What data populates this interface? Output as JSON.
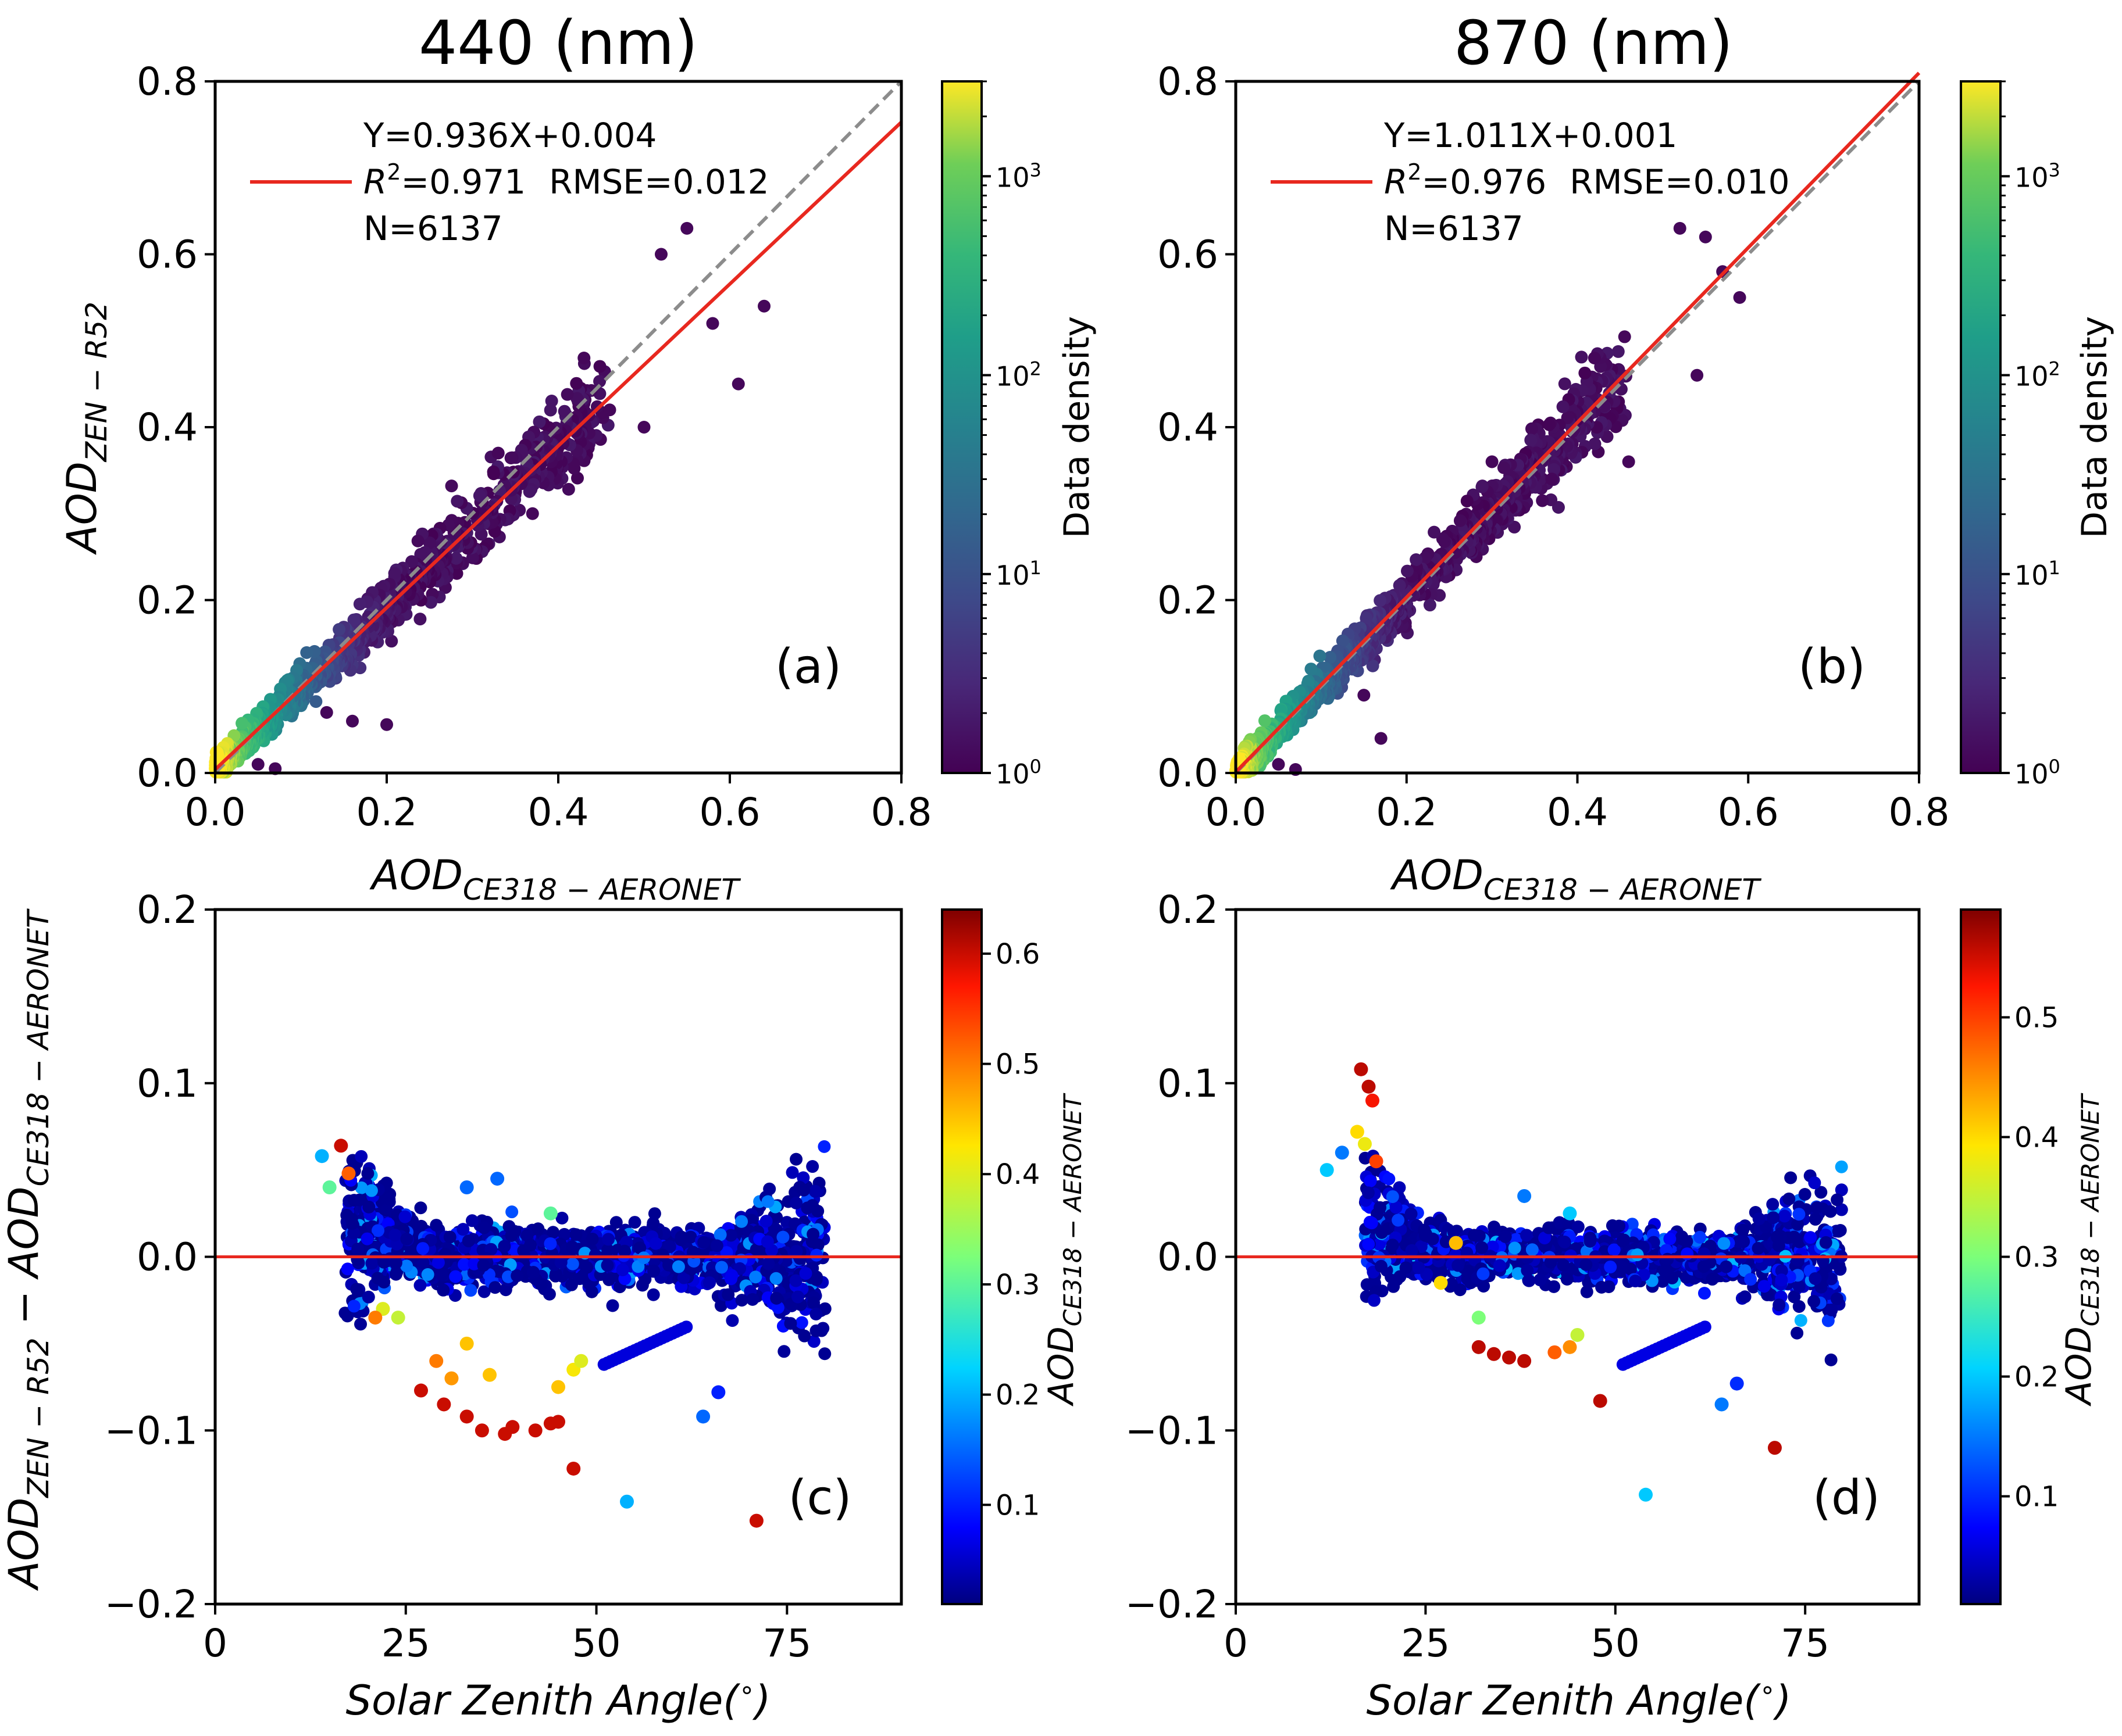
{
  "colors": {
    "fit_line": "#e8281f",
    "zero_line": "#e8281f",
    "one_to_one": "#8c8c8c",
    "axes": "#000000"
  },
  "chart_data": [
    {
      "id": "a",
      "type": "scatter",
      "title": "440 (nm)",
      "panel_label": "(a)",
      "xlabel": {
        "main": "AOD",
        "sub": "CE318 − AERONET"
      },
      "ylabel": {
        "main": "AOD",
        "sub": "ZEN − R52"
      },
      "xlim": [
        0.0,
        0.8
      ],
      "ylim": [
        0.0,
        0.8
      ],
      "xticks": [
        "0.0",
        "0.2",
        "0.4",
        "0.6",
        "0.8"
      ],
      "yticks": [
        "0.0",
        "0.2",
        "0.4",
        "0.6",
        "0.8"
      ],
      "fit": {
        "slope": 0.936,
        "intercept": 0.004
      },
      "stats": {
        "equation": "Y=0.936X+0.004",
        "r2_label": "R",
        "r2_sup": "2",
        "r2_value": "=0.971",
        "rmse": "RMSE=0.012",
        "n": "N=6137"
      },
      "legend": "top-left",
      "colorbar": {
        "label": "Data density",
        "scale": "log",
        "range": [
          1,
          3000
        ],
        "ticks": [
          {
            "base": "10",
            "exp": "0"
          },
          {
            "base": "10",
            "exp": "1"
          },
          {
            "base": "10",
            "exp": "2"
          },
          {
            "base": "10",
            "exp": "3"
          }
        ]
      },
      "outliers": [
        [
          0.05,
          0.01
        ],
        [
          0.07,
          0.005
        ],
        [
          0.16,
          0.06
        ],
        [
          0.2,
          0.056
        ],
        [
          0.13,
          0.07
        ],
        [
          0.52,
          0.6
        ],
        [
          0.55,
          0.63
        ],
        [
          0.58,
          0.52
        ],
        [
          0.61,
          0.45
        ],
        [
          0.64,
          0.54
        ],
        [
          0.43,
          0.48
        ],
        [
          0.46,
          0.42
        ],
        [
          0.5,
          0.4
        ],
        [
          0.37,
          0.3
        ],
        [
          0.33,
          0.37
        ]
      ]
    },
    {
      "id": "b",
      "type": "scatter",
      "title": "870 (nm)",
      "panel_label": "(b)",
      "xlabel": {
        "main": "AOD",
        "sub": "CE318 − AERONET"
      },
      "ylabel": {
        "main": "AOD",
        "sub": "ZEN − R52"
      },
      "xlim": [
        0.0,
        0.8
      ],
      "ylim": [
        0.0,
        0.8
      ],
      "xticks": [
        "0.0",
        "0.2",
        "0.4",
        "0.6",
        "0.8"
      ],
      "yticks": [
        "0.0",
        "0.2",
        "0.4",
        "0.6",
        "0.8"
      ],
      "fit": {
        "slope": 1.011,
        "intercept": 0.001
      },
      "stats": {
        "equation": "Y=1.011X+0.001",
        "r2_label": "R",
        "r2_sup": "2",
        "r2_value": "=0.976",
        "rmse": "RMSE=0.010",
        "n": "N=6137"
      },
      "legend": "top-left",
      "colorbar": {
        "label": "Data density",
        "scale": "log",
        "range": [
          1,
          3000
        ],
        "ticks": [
          {
            "base": "10",
            "exp": "0"
          },
          {
            "base": "10",
            "exp": "1"
          },
          {
            "base": "10",
            "exp": "2"
          },
          {
            "base": "10",
            "exp": "3"
          }
        ]
      },
      "outliers": [
        [
          0.05,
          0.01
        ],
        [
          0.07,
          0.004
        ],
        [
          0.17,
          0.04
        ],
        [
          0.15,
          0.09
        ],
        [
          0.52,
          0.63
        ],
        [
          0.55,
          0.62
        ],
        [
          0.54,
          0.46
        ],
        [
          0.57,
          0.58
        ],
        [
          0.59,
          0.55
        ],
        [
          0.42,
          0.48
        ],
        [
          0.46,
          0.36
        ],
        [
          0.37,
          0.34
        ],
        [
          0.3,
          0.36
        ]
      ]
    },
    {
      "id": "c",
      "type": "scatter",
      "title": "",
      "panel_label": "(c)",
      "xlabel": {
        "main": "Solar Zenith Angle(",
        "sup": "∘",
        "tail": ")"
      },
      "ylabel": {
        "a": "AOD",
        "asub": "ZEN − R52",
        "mid": " − AOD",
        "bsub": "CE318 − AERONET"
      },
      "xlim": [
        0,
        90
      ],
      "ylim": [
        -0.2,
        0.2
      ],
      "xticks": [
        "0",
        "25",
        "50",
        "75"
      ],
      "yticks": [
        "−0.2",
        "−0.1",
        "0.0",
        "0.1",
        "0.2"
      ],
      "reference_line_y": 0.0,
      "colorbar": {
        "label_main": "AOD",
        "label_sub": "CE318 − AERONET",
        "scale": "linear",
        "range": [
          0.01,
          0.64
        ],
        "ticks": [
          "0.1",
          "0.2",
          "0.3",
          "0.4",
          "0.5",
          "0.6"
        ]
      },
      "highlights": [
        {
          "x": 16.5,
          "y": 0.064,
          "c": 0.6
        },
        {
          "x": 17.5,
          "y": 0.048,
          "c": 0.52
        },
        {
          "x": 27,
          "y": -0.077,
          "c": 0.6
        },
        {
          "x": 30,
          "y": -0.085,
          "c": 0.6
        },
        {
          "x": 33,
          "y": -0.092,
          "c": 0.6
        },
        {
          "x": 35,
          "y": -0.1,
          "c": 0.6
        },
        {
          "x": 38,
          "y": -0.102,
          "c": 0.6
        },
        {
          "x": 39,
          "y": -0.098,
          "c": 0.6
        },
        {
          "x": 42,
          "y": -0.1,
          "c": 0.6
        },
        {
          "x": 44,
          "y": -0.096,
          "c": 0.6
        },
        {
          "x": 45,
          "y": -0.095,
          "c": 0.6
        },
        {
          "x": 47,
          "y": -0.122,
          "c": 0.6
        },
        {
          "x": 71,
          "y": -0.152,
          "c": 0.6
        },
        {
          "x": 54,
          "y": -0.141,
          "c": 0.2
        },
        {
          "x": 64,
          "y": -0.092,
          "c": 0.15
        },
        {
          "x": 66,
          "y": -0.078,
          "c": 0.1
        },
        {
          "x": 29,
          "y": -0.06,
          "c": 0.5
        },
        {
          "x": 31,
          "y": -0.07,
          "c": 0.48
        },
        {
          "x": 33,
          "y": -0.05,
          "c": 0.45
        },
        {
          "x": 36,
          "y": -0.068,
          "c": 0.45
        },
        {
          "x": 45,
          "y": -0.075,
          "c": 0.45
        },
        {
          "x": 47,
          "y": -0.065,
          "c": 0.42
        },
        {
          "x": 48,
          "y": -0.06,
          "c": 0.4
        },
        {
          "x": 37,
          "y": 0.045,
          "c": 0.15
        },
        {
          "x": 33,
          "y": 0.04,
          "c": 0.15
        },
        {
          "x": 44,
          "y": 0.025,
          "c": 0.3
        },
        {
          "x": 22,
          "y": -0.03,
          "c": 0.4
        },
        {
          "x": 24,
          "y": -0.035,
          "c": 0.38
        },
        {
          "x": 21,
          "y": -0.035,
          "c": 0.5
        },
        {
          "x": 14,
          "y": 0.058,
          "c": 0.2
        },
        {
          "x": 15,
          "y": 0.04,
          "c": 0.3
        }
      ]
    },
    {
      "id": "d",
      "type": "scatter",
      "title": "",
      "panel_label": "(d)",
      "xlabel": {
        "main": "Solar Zenith Angle(",
        "sup": "∘",
        "tail": ")"
      },
      "ylabel": {
        "a": "",
        "asub": "",
        "mid": "",
        "bsub": ""
      },
      "xlim": [
        0,
        90
      ],
      "ylim": [
        -0.2,
        0.2
      ],
      "xticks": [
        "0",
        "25",
        "50",
        "75"
      ],
      "yticks": [
        "−0.2",
        "−0.1",
        "0.0",
        "0.1",
        "0.2"
      ],
      "reference_line_y": 0.0,
      "colorbar": {
        "label_main": "AOD",
        "label_sub": "CE318 − AERONET",
        "scale": "linear",
        "range": [
          0.01,
          0.59
        ],
        "ticks": [
          "0.1",
          "0.2",
          "0.3",
          "0.4",
          "0.5"
        ]
      },
      "highlights": [
        {
          "x": 16.5,
          "y": 0.108,
          "c": 0.56
        },
        {
          "x": 17.5,
          "y": 0.098,
          "c": 0.56
        },
        {
          "x": 18,
          "y": 0.09,
          "c": 0.53
        },
        {
          "x": 16,
          "y": 0.072,
          "c": 0.4
        },
        {
          "x": 17,
          "y": 0.065,
          "c": 0.38
        },
        {
          "x": 18.5,
          "y": 0.055,
          "c": 0.5
        },
        {
          "x": 32,
          "y": -0.052,
          "c": 0.56
        },
        {
          "x": 34,
          "y": -0.056,
          "c": 0.56
        },
        {
          "x": 36,
          "y": -0.058,
          "c": 0.56
        },
        {
          "x": 38,
          "y": -0.06,
          "c": 0.56
        },
        {
          "x": 42,
          "y": -0.055,
          "c": 0.48
        },
        {
          "x": 44,
          "y": -0.052,
          "c": 0.45
        },
        {
          "x": 48,
          "y": -0.083,
          "c": 0.56
        },
        {
          "x": 71,
          "y": -0.11,
          "c": 0.56
        },
        {
          "x": 54,
          "y": -0.137,
          "c": 0.2
        },
        {
          "x": 64,
          "y": -0.085,
          "c": 0.15
        },
        {
          "x": 66,
          "y": -0.073,
          "c": 0.1
        },
        {
          "x": 29,
          "y": 0.008,
          "c": 0.42
        },
        {
          "x": 27,
          "y": -0.015,
          "c": 0.4
        },
        {
          "x": 32,
          "y": -0.035,
          "c": 0.3
        },
        {
          "x": 45,
          "y": -0.045,
          "c": 0.35
        },
        {
          "x": 38,
          "y": 0.035,
          "c": 0.15
        },
        {
          "x": 44,
          "y": 0.025,
          "c": 0.2
        },
        {
          "x": 12,
          "y": 0.05,
          "c": 0.2
        },
        {
          "x": 14,
          "y": 0.06,
          "c": 0.15
        }
      ]
    }
  ]
}
